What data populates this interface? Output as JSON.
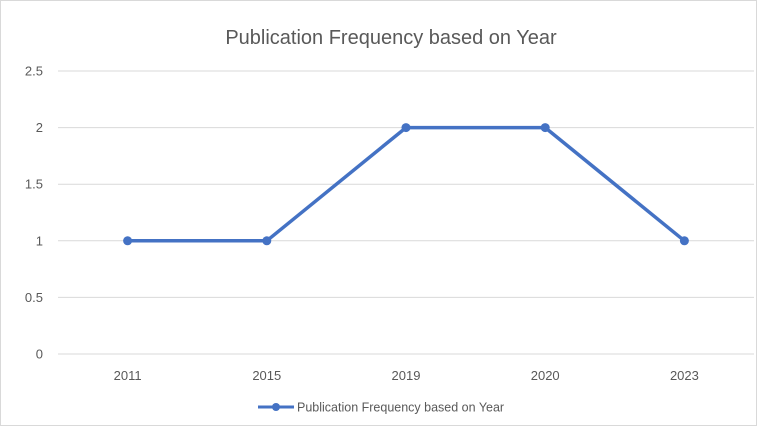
{
  "chart_data": {
    "type": "line",
    "title": "Publication Frequency based on Year",
    "xlabel": "",
    "ylabel": "",
    "categories": [
      "2011",
      "2015",
      "2019",
      "2020",
      "2023"
    ],
    "series": [
      {
        "name": "Publication Frequency based on Year",
        "values": [
          1,
          1,
          2,
          2,
          1
        ],
        "color": "#4472c4"
      }
    ],
    "ylim": [
      0,
      2.5
    ],
    "yticks": [
      "0",
      "0.5",
      "1",
      "1.5",
      "2",
      "2.5"
    ],
    "grid": true,
    "legend_position": "bottom"
  }
}
